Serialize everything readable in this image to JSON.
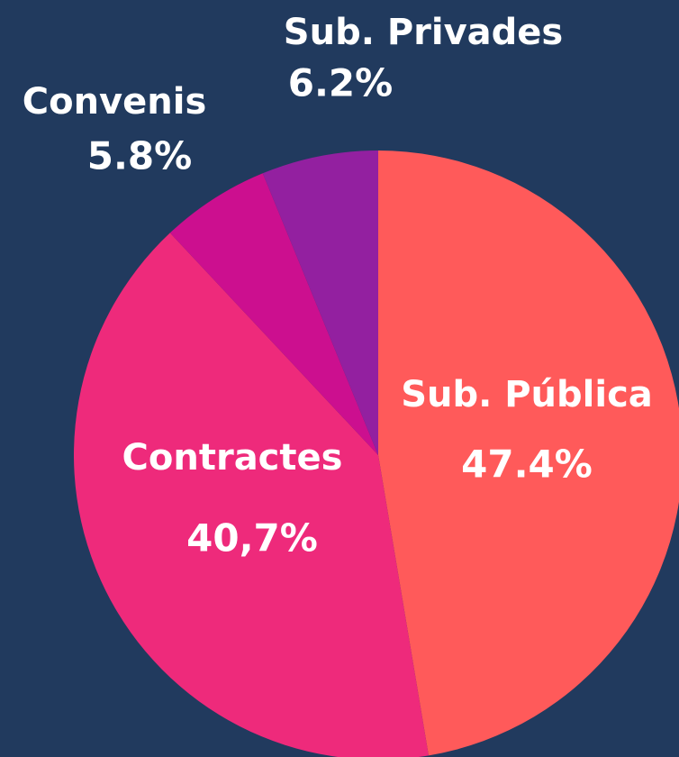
{
  "chart_data": {
    "type": "pie",
    "categories": [
      "Sub. Pública",
      "Contractes",
      "Convenis",
      "Sub. Privades"
    ],
    "values": [
      47.4,
      40.7,
      5.8,
      6.2
    ],
    "value_labels": [
      "47.4%",
      "40,7%",
      "5.8%",
      "6.2%"
    ],
    "colors": [
      "#ff5a5a",
      "#ee2a7b",
      "#cc0f8f",
      "#9320a0"
    ]
  }
}
